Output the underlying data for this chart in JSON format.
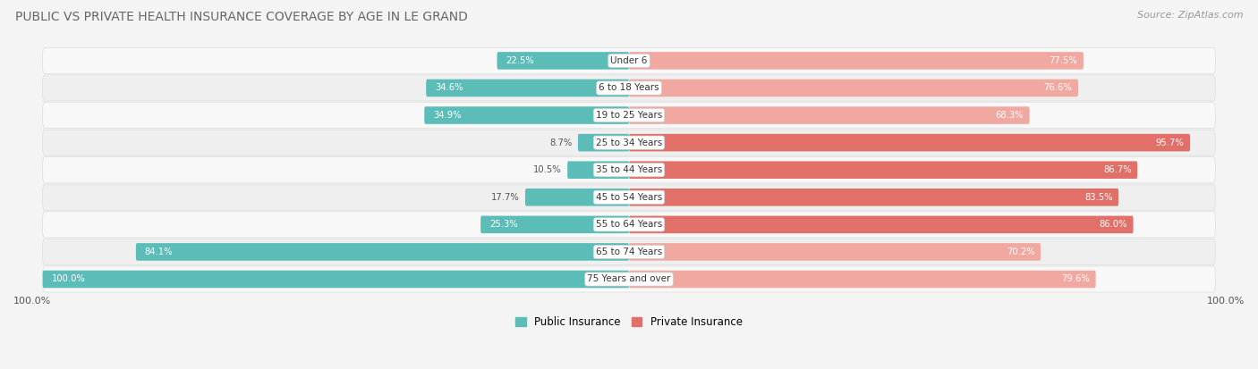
{
  "title": "PUBLIC VS PRIVATE HEALTH INSURANCE COVERAGE BY AGE IN LE GRAND",
  "source": "Source: ZipAtlas.com",
  "categories": [
    "Under 6",
    "6 to 18 Years",
    "19 to 25 Years",
    "25 to 34 Years",
    "35 to 44 Years",
    "45 to 54 Years",
    "55 to 64 Years",
    "65 to 74 Years",
    "75 Years and over"
  ],
  "public_values": [
    22.5,
    34.6,
    34.9,
    8.7,
    10.5,
    17.7,
    25.3,
    84.1,
    100.0
  ],
  "private_values": [
    77.5,
    76.6,
    68.3,
    95.7,
    86.7,
    83.5,
    86.0,
    70.2,
    79.6
  ],
  "public_color": "#5bbcb8",
  "private_color_dark": "#e07068",
  "private_color_light": "#f0a8a0",
  "private_colors": [
    "#f0a8a0",
    "#f0a8a0",
    "#f0a8a0",
    "#e07068",
    "#e07068",
    "#e07068",
    "#e07068",
    "#f0a8a0",
    "#f0a8a0"
  ],
  "bg_color": "#f4f4f4",
  "row_bg_color": "#ffffff",
  "row_border_color": "#e0e0e0",
  "title_color": "#666666",
  "source_color": "#999999",
  "title_fontsize": 10,
  "source_fontsize": 8,
  "bar_height": 0.62,
  "x_axis_label_left": "100.0%",
  "x_axis_label_right": "100.0%",
  "legend_labels": [
    "Public Insurance",
    "Private Insurance"
  ],
  "max_val": 100
}
